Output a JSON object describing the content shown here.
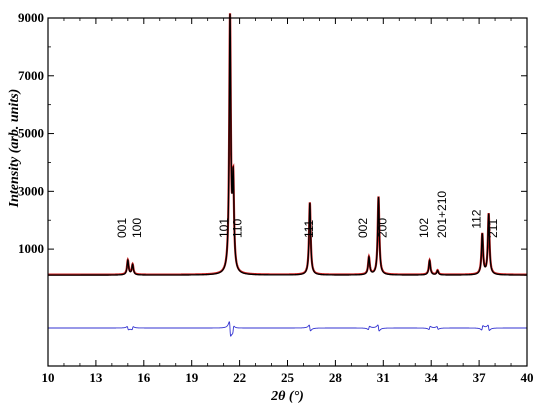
{
  "chart_data": {
    "type": "line",
    "xlabel": "2θ (°)",
    "ylabel": "Intensity (arb. units)",
    "xlim": [
      10,
      40
    ],
    "ylim": [
      0,
      9000
    ],
    "x_ticks": [
      10,
      13,
      16,
      19,
      22,
      25,
      28,
      31,
      34,
      37,
      40
    ],
    "y_ticks": [
      1000,
      3000,
      5000,
      7000,
      9000
    ],
    "grid": false,
    "baseline_intensity": 100,
    "peaks": [
      {
        "label": "001",
        "x": 15.0,
        "y": 600
      },
      {
        "label": "100",
        "x": 15.3,
        "y": 450
      },
      {
        "label": "101",
        "x": 21.4,
        "y": 8900
      },
      {
        "label": "110",
        "x": 21.6,
        "y": 3100
      },
      {
        "label": "111",
        "x": 26.4,
        "y": 2600
      },
      {
        "label": "002",
        "x": 30.1,
        "y": 700
      },
      {
        "label": "200",
        "x": 30.7,
        "y": 2800
      },
      {
        "label": "102",
        "x": 33.9,
        "y": 600
      },
      {
        "label": "201+210",
        "x": 34.4,
        "y": 250
      },
      {
        "label": "112",
        "x": 37.2,
        "y": 1500
      },
      {
        "label": "211",
        "x": 37.6,
        "y": 2200
      }
    ],
    "series": [
      {
        "color": "#cc2020",
        "values_from": "peaks"
      },
      {
        "color": "#000000",
        "values_from": "peaks"
      },
      {
        "color": "#3030d0",
        "values_from": "difference"
      }
    ]
  }
}
